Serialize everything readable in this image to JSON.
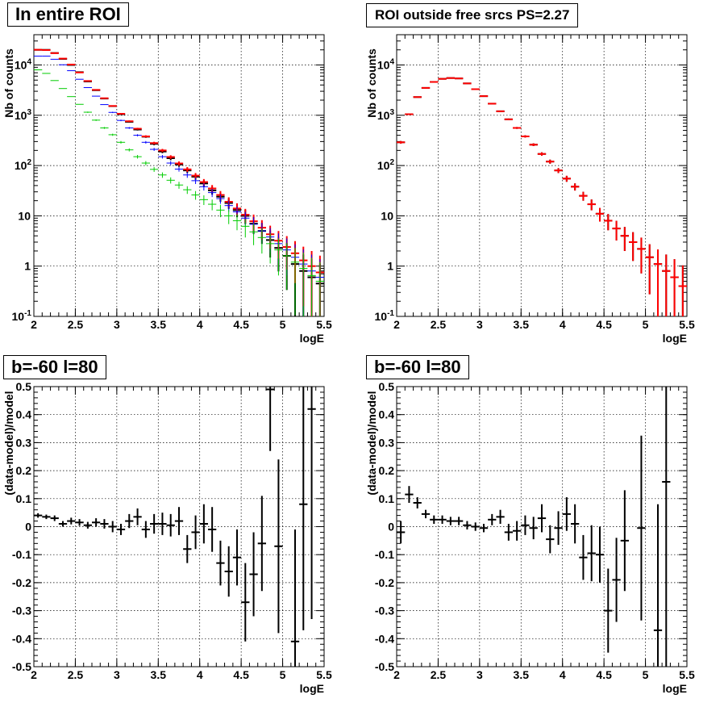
{
  "chart_data": [
    {
      "type": "scatter",
      "title": "In entire ROI",
      "xlabel": "logE",
      "ylabel": "Nb of counts",
      "xlim": [
        2,
        5.5
      ],
      "ylim": [
        0.1,
        40000
      ],
      "yscale": "log",
      "grid": true,
      "x_ticks": [
        "2",
        "2.5",
        "3",
        "3.5",
        "4",
        "4.5",
        "5",
        "5.5"
      ],
      "y_ticks": [
        "10^-1",
        "1",
        "10",
        "10^2",
        "10^3",
        "10^4"
      ],
      "x": [
        2.05,
        2.15,
        2.25,
        2.35,
        2.45,
        2.55,
        2.65,
        2.75,
        2.85,
        2.95,
        3.05,
        3.15,
        3.25,
        3.35,
        3.45,
        3.55,
        3.65,
        3.75,
        3.85,
        3.95,
        4.05,
        4.15,
        4.25,
        4.35,
        4.45,
        4.55,
        4.65,
        4.75,
        4.85,
        4.95,
        5.05,
        5.15,
        5.25,
        5.35,
        5.45
      ],
      "series": [
        {
          "color": "#000000",
          "values": [
            20000,
            20000,
            17300,
            13200,
            10000,
            7200,
            4700,
            3150,
            2150,
            1520,
            1050,
            740,
            520,
            375,
            270,
            190,
            140,
            105,
            80,
            60,
            44,
            32,
            24,
            18,
            13,
            10,
            7,
            5,
            3.3,
            2.3,
            1.6,
            1.1,
            0.8,
            0.6,
            0.45
          ]
        },
        {
          "color": "#ff0000",
          "values": [
            20100,
            19800,
            17200,
            13400,
            10200,
            7100,
            4800,
            3200,
            2180,
            1530,
            1070,
            760,
            540,
            380,
            280,
            200,
            148,
            110,
            84,
            63,
            47,
            35,
            26,
            19,
            14,
            10.5,
            7.8,
            5.8,
            4.3,
            3.2,
            2.4,
            1.8,
            1.3,
            1.0,
            0.75
          ]
        },
        {
          "color": "#0000ff",
          "values": [
            15000,
            15000,
            13000,
            10100,
            7700,
            5200,
            3550,
            2400,
            1630,
            1140,
            790,
            560,
            400,
            290,
            210,
            150,
            112,
            85,
            65,
            50,
            38,
            29,
            22,
            16,
            12,
            9,
            6.8,
            5,
            3.8,
            2.8,
            2.1,
            1.5,
            1.1,
            0.8,
            0.6
          ]
        },
        {
          "color": "#00cc00",
          "values": [
            8000,
            6800,
            4900,
            3400,
            2350,
            1650,
            1150,
            800,
            560,
            410,
            290,
            205,
            150,
            112,
            84,
            65,
            51,
            41,
            33,
            26,
            21,
            17,
            13,
            10,
            8,
            6.2,
            4.8,
            3.7,
            2.8,
            2.1,
            1.6,
            1.2,
            0.9,
            0.65,
            0.5
          ]
        }
      ]
    },
    {
      "type": "scatter",
      "title": "ROI outside free srcs PS=2.27",
      "xlabel": "logE",
      "ylabel": "Nb of counts",
      "xlim": [
        2,
        5.5
      ],
      "ylim": [
        0.1,
        40000
      ],
      "yscale": "log",
      "grid": true,
      "x_ticks": [
        "2",
        "2.5",
        "3",
        "3.5",
        "4",
        "4.5",
        "5",
        "5.5"
      ],
      "y_ticks": [
        "10^-1",
        "1",
        "10",
        "10^2",
        "10^3",
        "10^4"
      ],
      "x": [
        2.05,
        2.15,
        2.25,
        2.35,
        2.45,
        2.55,
        2.65,
        2.75,
        2.85,
        2.95,
        3.05,
        3.15,
        3.25,
        3.35,
        3.45,
        3.55,
        3.65,
        3.75,
        3.85,
        3.95,
        4.05,
        4.15,
        4.25,
        4.35,
        4.45,
        4.55,
        4.65,
        4.75,
        4.85,
        4.95,
        5.05,
        5.15,
        5.25,
        5.35,
        5.45
      ],
      "series": [
        {
          "color": "#000000",
          "values": [
            290,
            1050,
            2300,
            3500,
            4600,
            5300,
            5500,
            5400,
            4300,
            3300,
            2400,
            1700,
            1200,
            830,
            560,
            380,
            260,
            170,
            120,
            80,
            55,
            38,
            25,
            17,
            11,
            8,
            5.6,
            4,
            3,
            2.2,
            1.5,
            1.1,
            0.8,
            0.6,
            0.4
          ]
        },
        {
          "color": "#ff0000",
          "values": [
            290,
            1050,
            2300,
            3500,
            4600,
            5300,
            5500,
            5400,
            4300,
            3300,
            2400,
            1700,
            1200,
            830,
            560,
            380,
            260,
            170,
            120,
            80,
            55,
            38,
            25,
            17,
            11,
            8,
            5.6,
            4,
            3,
            2.2,
            1.5,
            1.1,
            0.8,
            0.6,
            0.4
          ]
        }
      ]
    },
    {
      "type": "scatter",
      "title": "b=-60 l=80",
      "xlabel": "logE",
      "ylabel": "(data-model)/model",
      "xlim": [
        2,
        5.5
      ],
      "ylim": [
        -0.5,
        0.5
      ],
      "grid": true,
      "x_ticks": [
        "2",
        "2.5",
        "3",
        "3.5",
        "4",
        "4.5",
        "5",
        "5.5"
      ],
      "y_ticks": [
        "-0.5",
        "-0.4",
        "-0.3",
        "-0.2",
        "-0.1",
        "0",
        "0.1",
        "0.2",
        "0.3",
        "0.4",
        "0.5"
      ],
      "x": [
        2.05,
        2.15,
        2.25,
        2.35,
        2.45,
        2.55,
        2.65,
        2.75,
        2.85,
        2.95,
        3.05,
        3.15,
        3.25,
        3.35,
        3.45,
        3.55,
        3.65,
        3.75,
        3.85,
        3.95,
        4.05,
        4.15,
        4.25,
        4.35,
        4.45,
        4.55,
        4.65,
        4.75,
        4.85,
        4.95,
        5.05,
        5.15,
        5.25,
        5.35,
        5.45
      ],
      "values": [
        0.04,
        0.035,
        0.03,
        0.01,
        0.02,
        0.015,
        0.005,
        0.015,
        0.01,
        0,
        -0.01,
        0.02,
        0.035,
        -0.01,
        0.01,
        0.01,
        0.005,
        0.02,
        -0.08,
        -0.02,
        0.01,
        -0.01,
        -0.13,
        -0.16,
        -0.11,
        -0.27,
        -0.17,
        -0.06,
        0.49,
        -0.07,
        null,
        -0.41,
        0.08,
        0.42,
        null
      ],
      "errors": [
        0.008,
        0.008,
        0.01,
        0.01,
        0.012,
        0.012,
        0.012,
        0.015,
        0.017,
        0.02,
        0.02,
        0.025,
        0.03,
        0.03,
        0.035,
        0.04,
        0.04,
        0.05,
        0.05,
        0.06,
        0.07,
        0.08,
        0.08,
        0.09,
        0.1,
        0.14,
        0.15,
        0.17,
        0.22,
        0.31,
        0,
        0.4,
        0.45,
        0.75,
        0
      ]
    },
    {
      "type": "scatter",
      "title": "b=-60 l=80",
      "xlabel": "logE",
      "ylabel": "(data-model)/model",
      "xlim": [
        2,
        5.5
      ],
      "ylim": [
        -0.5,
        0.5
      ],
      "grid": true,
      "x_ticks": [
        "2",
        "2.5",
        "3",
        "3.5",
        "4",
        "4.5",
        "5",
        "5.5"
      ],
      "y_ticks": [
        "-0.5",
        "-0.4",
        "-0.3",
        "-0.2",
        "-0.1",
        "0",
        "0.1",
        "0.2",
        "0.3",
        "0.4",
        "0.5"
      ],
      "x": [
        2.05,
        2.15,
        2.25,
        2.35,
        2.45,
        2.55,
        2.65,
        2.75,
        2.85,
        2.95,
        3.05,
        3.15,
        3.25,
        3.35,
        3.45,
        3.55,
        3.65,
        3.75,
        3.85,
        3.95,
        4.05,
        4.15,
        4.25,
        4.35,
        4.45,
        4.55,
        4.65,
        4.75,
        4.85,
        4.95,
        5.05,
        5.15,
        5.25,
        5.35,
        5.45
      ],
      "values": [
        -0.02,
        0.115,
        0.085,
        0.045,
        0.025,
        0.025,
        0.02,
        0.02,
        0.005,
        0,
        -0.005,
        0.025,
        0.035,
        -0.02,
        -0.015,
        0.005,
        -0.005,
        0.03,
        -0.045,
        -0.005,
        0.045,
        0.01,
        -0.11,
        -0.095,
        -0.1,
        -0.3,
        -0.19,
        -0.05,
        null,
        -0.005,
        null,
        -0.37,
        0.16,
        null,
        null
      ],
      "errors": [
        0.04,
        0.03,
        0.02,
        0.015,
        0.015,
        0.015,
        0.015,
        0.015,
        0.015,
        0.015,
        0.015,
        0.02,
        0.025,
        0.03,
        0.035,
        0.035,
        0.04,
        0.05,
        0.05,
        0.06,
        0.06,
        0.07,
        0.08,
        0.1,
        0.1,
        0.15,
        0.15,
        0.18,
        0,
        0.33,
        0,
        0.45,
        0.7,
        0,
        0
      ]
    }
  ]
}
